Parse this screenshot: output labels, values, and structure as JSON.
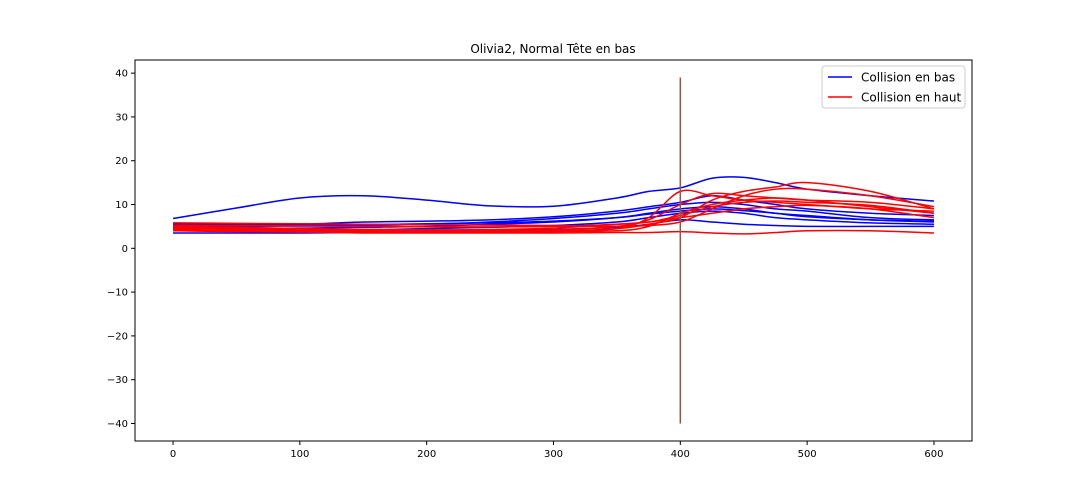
{
  "chart_data": {
    "type": "line",
    "title": "Olivia2, Normal Tête en bas",
    "xlabel": "",
    "ylabel": "",
    "xlim": [
      -30,
      630
    ],
    "ylim": [
      -44,
      43
    ],
    "x_ticks": [
      0,
      100,
      200,
      300,
      400,
      500,
      600
    ],
    "y_ticks": [
      -40,
      -30,
      -20,
      -10,
      0,
      10,
      20,
      30,
      40
    ],
    "grid": false,
    "legend_position": "top-right",
    "legend": [
      {
        "label": "Collision en bas",
        "color": "#0000ff"
      },
      {
        "label": "Collision en haut",
        "color": "#ff0000"
      }
    ],
    "vertical_line": {
      "x": 400,
      "y_from": -40,
      "y_to": 39,
      "color": "#8c564b"
    },
    "x": [
      0,
      50,
      100,
      150,
      200,
      250,
      300,
      350,
      375,
      400,
      425,
      450,
      475,
      500,
      550,
      600
    ],
    "series": [
      {
        "group": "Collision en bas",
        "color": "#0000ff",
        "values": [
          6.8,
          9.2,
          11.5,
          12.0,
          11.0,
          9.7,
          9.6,
          11.5,
          13.0,
          13.8,
          16.0,
          16.2,
          15.0,
          13.5,
          12.0,
          10.8
        ]
      },
      {
        "group": "Collision en bas",
        "color": "#0000ff",
        "values": [
          5.5,
          5.6,
          5.5,
          6.0,
          6.2,
          6.5,
          7.2,
          8.5,
          9.5,
          10.5,
          12.0,
          11.0,
          10.0,
          9.0,
          8.0,
          7.5
        ]
      },
      {
        "group": "Collision en bas",
        "color": "#0000ff",
        "values": [
          5.0,
          5.0,
          5.1,
          5.2,
          5.5,
          6.0,
          6.8,
          8.0,
          9.0,
          10.0,
          10.5,
          10.0,
          9.0,
          8.5,
          7.0,
          6.5
        ]
      },
      {
        "group": "Collision en bas",
        "color": "#0000ff",
        "values": [
          4.5,
          4.5,
          4.6,
          4.8,
          5.0,
          5.5,
          6.0,
          7.0,
          8.0,
          9.0,
          9.5,
          9.0,
          8.0,
          7.5,
          6.5,
          6.0
        ]
      },
      {
        "group": "Collision en bas",
        "color": "#0000ff",
        "values": [
          4.0,
          4.0,
          4.0,
          4.2,
          4.5,
          4.8,
          5.2,
          6.0,
          7.0,
          8.0,
          8.5,
          8.0,
          7.0,
          6.5,
          5.8,
          5.5
        ]
      },
      {
        "group": "Collision en bas",
        "color": "#0000ff",
        "values": [
          3.5,
          3.5,
          3.5,
          3.6,
          3.8,
          4.0,
          4.3,
          4.8,
          5.5,
          6.5,
          6.0,
          5.5,
          5.2,
          5.0,
          5.0,
          5.0
        ]
      },
      {
        "group": "Collision en bas",
        "color": "#0000ff",
        "values": [
          5.2,
          5.3,
          5.4,
          5.4,
          5.6,
          5.8,
          6.2,
          7.0,
          7.8,
          8.5,
          9.0,
          8.6,
          8.0,
          7.2,
          6.5,
          6.2
        ]
      },
      {
        "group": "Collision en haut",
        "color": "#ff0000",
        "values": [
          5.8,
          5.7,
          5.6,
          5.5,
          5.4,
          5.3,
          5.2,
          5.0,
          5.2,
          6.0,
          9.0,
          12.0,
          13.5,
          13.5,
          12.0,
          9.5
        ]
      },
      {
        "group": "Collision en haut",
        "color": "#ff0000",
        "values": [
          5.0,
          4.8,
          4.5,
          4.3,
          4.2,
          4.1,
          4.0,
          4.5,
          5.5,
          7.0,
          11.0,
          13.0,
          14.0,
          15.0,
          13.0,
          9.0
        ]
      },
      {
        "group": "Collision en haut",
        "color": "#ff0000",
        "values": [
          4.8,
          4.6,
          4.4,
          4.2,
          4.0,
          4.0,
          4.2,
          5.0,
          6.5,
          10.0,
          12.5,
          12.0,
          11.5,
          11.0,
          10.5,
          9.0
        ]
      },
      {
        "group": "Collision en haut",
        "color": "#ff0000",
        "values": [
          4.5,
          4.3,
          4.1,
          4.0,
          3.9,
          3.8,
          3.8,
          4.0,
          5.0,
          8.0,
          10.0,
          11.0,
          11.5,
          11.0,
          9.5,
          8.0
        ]
      },
      {
        "group": "Collision en haut",
        "color": "#ff0000",
        "values": [
          4.2,
          4.0,
          3.9,
          3.8,
          3.7,
          3.7,
          3.8,
          4.5,
          7.0,
          13.0,
          12.0,
          11.0,
          10.5,
          10.0,
          9.0,
          8.5
        ]
      },
      {
        "group": "Collision en haut",
        "color": "#ff0000",
        "values": [
          4.0,
          3.8,
          3.7,
          3.5,
          3.5,
          3.5,
          3.5,
          3.6,
          3.6,
          3.8,
          3.5,
          3.3,
          3.6,
          4.0,
          4.0,
          3.5
        ]
      },
      {
        "group": "Collision en haut",
        "color": "#ff0000",
        "values": [
          4.6,
          4.5,
          4.4,
          4.3,
          4.2,
          4.3,
          4.6,
          5.5,
          6.0,
          7.0,
          8.0,
          9.0,
          9.5,
          9.8,
          9.0,
          7.0
        ]
      },
      {
        "group": "Collision en haut",
        "color": "#ff0000",
        "values": [
          5.3,
          5.2,
          5.1,
          5.0,
          4.9,
          4.9,
          5.0,
          5.5,
          6.0,
          7.5,
          9.5,
          10.5,
          10.8,
          10.5,
          9.8,
          8.0
        ]
      }
    ]
  }
}
